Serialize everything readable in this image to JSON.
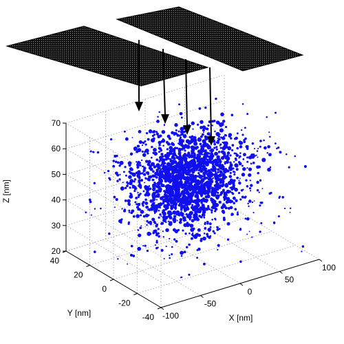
{
  "chart_data": {
    "type": "scatter3d",
    "title": "",
    "xlabel": "X [nm]",
    "ylabel": "Y [nm]",
    "zlabel": "Z [nm]",
    "xlim": [
      -100,
      100
    ],
    "ylim": [
      -40,
      40
    ],
    "zlim": [
      20,
      70
    ],
    "xticks": [
      -100,
      -50,
      0,
      50,
      100
    ],
    "yticks": [
      -40,
      -20,
      0,
      20,
      40
    ],
    "zticks": [
      20,
      30,
      40,
      50,
      60,
      70
    ],
    "grid": true,
    "series": [
      {
        "marker_color": "#1010ee",
        "marker": "dot",
        "point_count_visible": "several thousand",
        "distribution": {
          "core_center": {
            "x": -5,
            "y": 0,
            "z": 50
          },
          "core_spread": {
            "x": 30,
            "y": 10,
            "z": 9
          },
          "halo_spread": {
            "x": 60,
            "y": 20,
            "z": 14
          }
        }
      }
    ],
    "annotations": {
      "grid_planes": 2,
      "arrows": 4,
      "plane_color": "#000000",
      "arrow_color": "#000000"
    }
  }
}
